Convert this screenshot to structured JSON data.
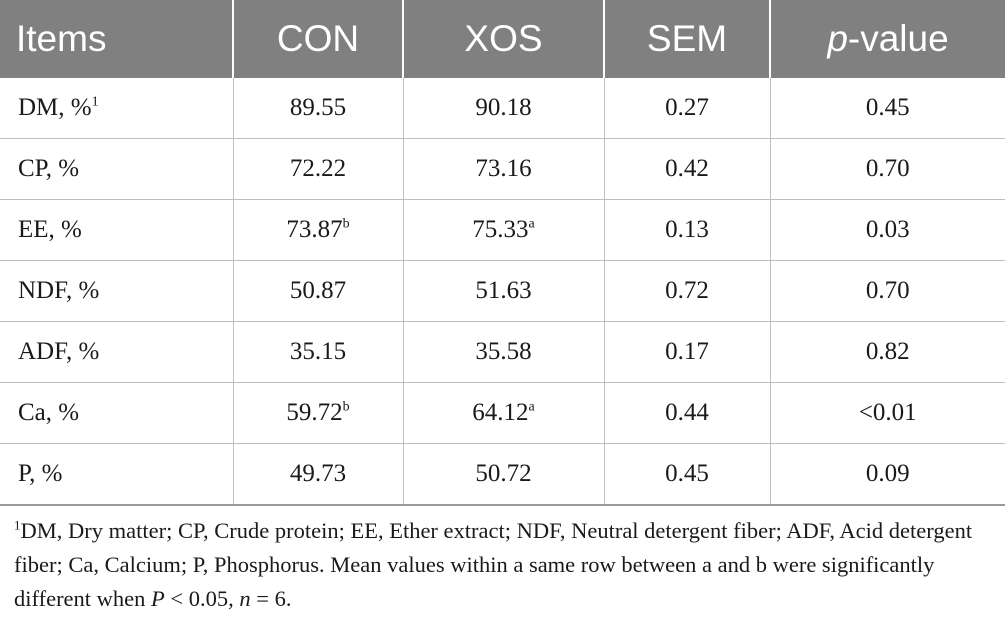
{
  "table": {
    "headers": [
      "Items",
      "CON",
      "XOS",
      "SEM",
      "p",
      "-value"
    ],
    "rows": [
      {
        "item": "DM, %",
        "item_sup": "1",
        "con": "89.55",
        "con_sup": "",
        "xos": "90.18",
        "xos_sup": "",
        "sem": "0.27",
        "p": "0.45"
      },
      {
        "item": "CP, %",
        "item_sup": "",
        "con": "72.22",
        "con_sup": "",
        "xos": "73.16",
        "xos_sup": "",
        "sem": "0.42",
        "p": "0.70"
      },
      {
        "item": "EE, %",
        "item_sup": "",
        "con": "73.87",
        "con_sup": "b",
        "xos": "75.33",
        "xos_sup": "a",
        "sem": "0.13",
        "p": "0.03"
      },
      {
        "item": "NDF, %",
        "item_sup": "",
        "con": "50.87",
        "con_sup": "",
        "xos": "51.63",
        "xos_sup": "",
        "sem": "0.72",
        "p": "0.70"
      },
      {
        "item": "ADF, %",
        "item_sup": "",
        "con": "35.15",
        "con_sup": "",
        "xos": "35.58",
        "xos_sup": "",
        "sem": "0.17",
        "p": "0.82"
      },
      {
        "item": "Ca, %",
        "item_sup": "",
        "con": "59.72",
        "con_sup": "b",
        "xos": "64.12",
        "xos_sup": "a",
        "sem": "0.44",
        "p": "<0.01"
      },
      {
        "item": "P, %",
        "item_sup": "",
        "con": "49.73",
        "con_sup": "",
        "xos": "50.72",
        "xos_sup": "",
        "sem": "0.45",
        "p": "0.09"
      }
    ]
  },
  "footnote": {
    "marker": "1",
    "text_1": "DM, Dry matter; CP, Crude protein; EE, Ether extract; NDF, Neutral detergent fiber; ADF, Acid detergent fiber; Ca, Calcium; P, Phosphorus. Mean values within a same row between a and b were significantly different when ",
    "p_symbol": "P",
    "text_2": " < 0.05, ",
    "n_symbol": "n",
    "text_3": " = 6."
  }
}
